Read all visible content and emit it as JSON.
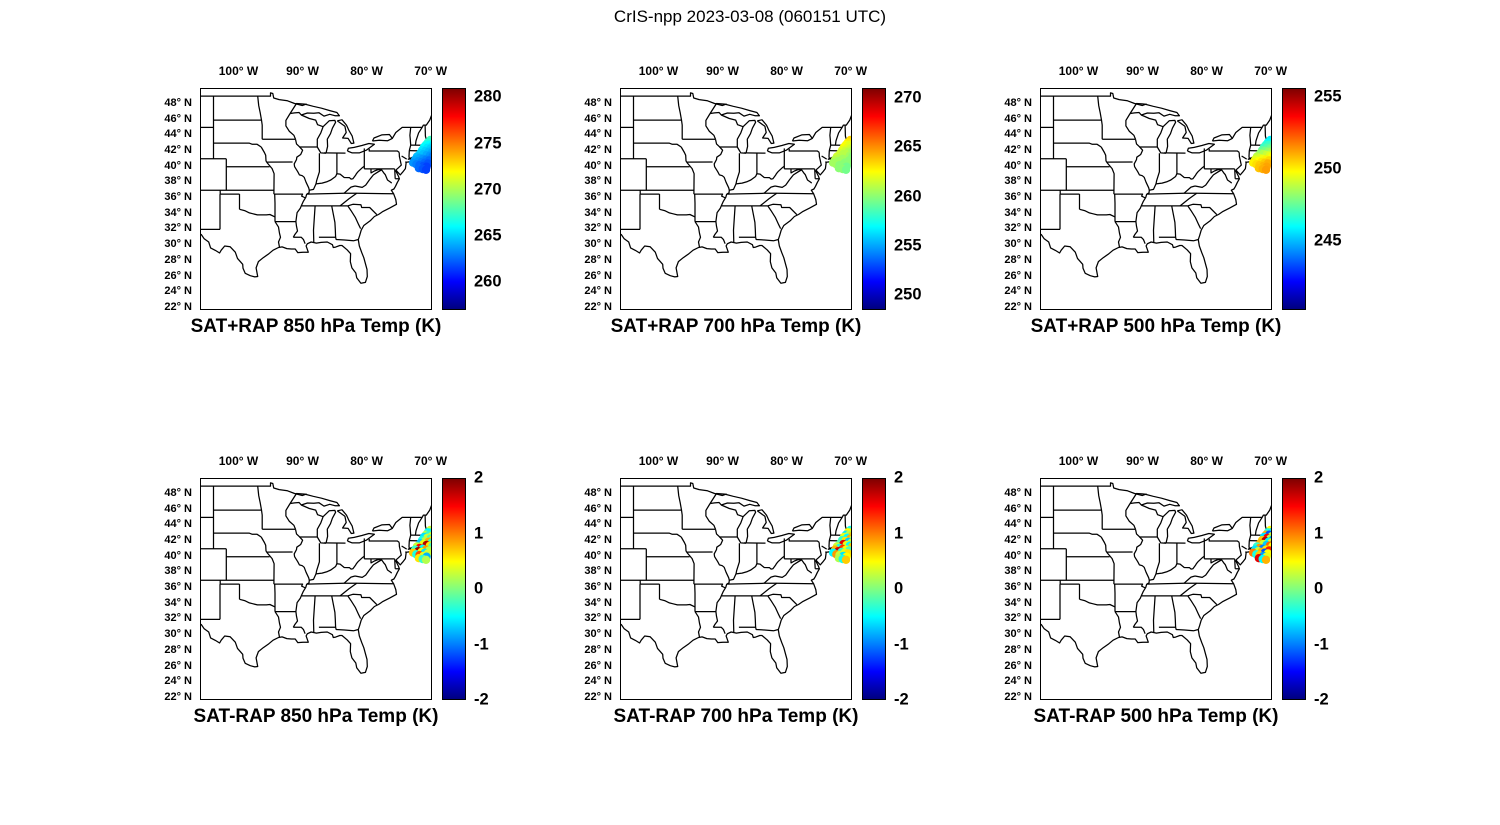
{
  "figure_title": "CrIS-npp 2023-03-08 (060151 UTC)",
  "axes": {
    "lon_ticks": [
      {
        "lon": -100,
        "label": "100° W"
      },
      {
        "lon": -90,
        "label": "90° W"
      },
      {
        "lon": -80,
        "label": "80° W"
      },
      {
        "lon": -70,
        "label": "70° W"
      }
    ],
    "lat_ticks": [
      {
        "lat": 48,
        "label": "48° N"
      },
      {
        "lat": 46,
        "label": "46° N"
      },
      {
        "lat": 44,
        "label": "44° N"
      },
      {
        "lat": 42,
        "label": "42° N"
      },
      {
        "lat": 40,
        "label": "40° N"
      },
      {
        "lat": 38,
        "label": "38° N"
      },
      {
        "lat": 36,
        "label": "36° N"
      },
      {
        "lat": 34,
        "label": "34° N"
      },
      {
        "lat": 32,
        "label": "32° N"
      },
      {
        "lat": 30,
        "label": "30° N"
      },
      {
        "lat": 28,
        "label": "28° N"
      },
      {
        "lat": 26,
        "label": "26° N"
      },
      {
        "lat": 24,
        "label": "24° N"
      },
      {
        "lat": 22,
        "label": "22° N"
      }
    ]
  },
  "chart_data": {
    "type": "scatter",
    "subtype": "map-scatter-with-colorbar",
    "colormap": "jet",
    "lon_range": [
      -106,
      -69.8
    ],
    "lat_range": [
      21.6,
      49.9
    ],
    "points_lonlat": [
      [
        -70.2,
        43.4
      ],
      [
        -69.8,
        43.2
      ],
      [
        -69.4,
        43.0
      ],
      [
        -70.6,
        43.1
      ],
      [
        -70.9,
        42.8
      ],
      [
        -70.4,
        42.8
      ],
      [
        -70.0,
        42.6
      ],
      [
        -69.6,
        42.6
      ],
      [
        -71.2,
        42.5
      ],
      [
        -70.7,
        42.4
      ],
      [
        -70.2,
        42.3
      ],
      [
        -69.8,
        42.2
      ],
      [
        -71.5,
        42.1
      ],
      [
        -71.0,
        42.0
      ],
      [
        -70.5,
        41.9
      ],
      [
        -70.0,
        41.8
      ],
      [
        -69.5,
        41.9
      ],
      [
        -71.8,
        41.7
      ],
      [
        -71.3,
        41.6
      ],
      [
        -70.8,
        41.5
      ],
      [
        -70.3,
        41.4
      ],
      [
        -69.9,
        41.3
      ],
      [
        -72.3,
        41.3
      ],
      [
        -71.9,
        41.1
      ],
      [
        -71.4,
        41.0
      ],
      [
        -70.9,
        40.9
      ],
      [
        -70.4,
        40.8
      ],
      [
        -72.6,
        40.9
      ],
      [
        -72.1,
        40.7
      ],
      [
        -71.6,
        40.6
      ],
      [
        -71.1,
        40.5
      ],
      [
        -70.6,
        40.4
      ],
      [
        -72.9,
        40.5
      ],
      [
        -72.4,
        40.3
      ],
      [
        -71.9,
        40.2
      ],
      [
        -71.3,
        40.1
      ],
      [
        -70.8,
        40.0
      ],
      [
        -72.0,
        39.8
      ],
      [
        -71.4,
        39.7
      ],
      [
        -70.9,
        39.6
      ]
    ],
    "panels": [
      {
        "id": "sat-plus-rap-850",
        "title": "SAT+RAP 850 hPa Temp (K)",
        "vmin": 257,
        "vmax": 281,
        "cb_ticks": [
          {
            "value": 260,
            "label": "260"
          },
          {
            "value": 265,
            "label": "265"
          },
          {
            "value": 270,
            "label": "270"
          },
          {
            "value": 275,
            "label": "275"
          },
          {
            "value": 280,
            "label": "280"
          }
        ],
        "values": [
          267.5,
          267,
          266.5,
          267,
          266.5,
          266,
          265.5,
          265,
          266,
          265.5,
          265,
          264.5,
          265.5,
          265,
          264.5,
          264,
          263.5,
          265,
          264.5,
          264,
          263.5,
          263,
          264.5,
          264,
          263.5,
          263,
          262.5,
          264,
          263.5,
          263,
          262.5,
          262,
          263.5,
          263,
          262.5,
          262,
          261.5,
          262.5,
          262,
          261.5
        ]
      },
      {
        "id": "sat-plus-rap-700",
        "title": "SAT+RAP 700 hPa Temp (K)",
        "vmin": 248.5,
        "vmax": 271,
        "cb_ticks": [
          {
            "value": 250,
            "label": "250"
          },
          {
            "value": 255,
            "label": "255"
          },
          {
            "value": 260,
            "label": "260"
          },
          {
            "value": 265,
            "label": "265"
          },
          {
            "value": 270,
            "label": "270"
          }
        ],
        "values": [
          263.5,
          263,
          262.5,
          263,
          262.5,
          262,
          262,
          261.5,
          262.5,
          262,
          261.5,
          261,
          262,
          261.5,
          261,
          260.5,
          260.5,
          261.5,
          261,
          261,
          260.5,
          260,
          261.5,
          261,
          260.5,
          260.5,
          260,
          261,
          260.5,
          260.5,
          260,
          260,
          260.5,
          260.5,
          260,
          260,
          259.5,
          260,
          260,
          259.5
        ]
      },
      {
        "id": "sat-plus-rap-500",
        "title": "SAT+RAP 500 hPa Temp (K)",
        "vmin": 240.2,
        "vmax": 255.6,
        "cb_ticks": [
          {
            "value": 245,
            "label": "245"
          },
          {
            "value": 250,
            "label": "250"
          },
          {
            "value": 255,
            "label": "255"
          }
        ],
        "values": [
          245.8,
          246.1,
          246.4,
          246,
          246.5,
          246.8,
          247.1,
          247.4,
          246.8,
          247.2,
          247.6,
          248,
          247.4,
          247.8,
          248.2,
          248.6,
          249,
          248.2,
          248.6,
          249,
          249.4,
          249.8,
          248.8,
          249.2,
          249.6,
          250,
          250.4,
          249.4,
          249.8,
          250.2,
          250.6,
          251,
          250,
          250.3,
          250.6,
          250.9,
          251.2,
          250.7,
          251,
          251.3
        ]
      },
      {
        "id": "sat-minus-rap-850",
        "title": "SAT-RAP 850 hPa Temp (K)",
        "vmin": -2,
        "vmax": 2,
        "cb_ticks": [
          {
            "value": -2,
            "label": "-2"
          },
          {
            "value": -1,
            "label": "-1"
          },
          {
            "value": 0,
            "label": "0"
          },
          {
            "value": 1,
            "label": "1"
          },
          {
            "value": 2,
            "label": "2"
          }
        ],
        "values": [
          0.3,
          -0.2,
          0.5,
          -0.5,
          0.2,
          -0.3,
          0.4,
          0.1,
          -0.6,
          0.3,
          -0.2,
          0.6,
          -0.4,
          0.2,
          0.8,
          -0.3,
          0.5,
          -0.7,
          0.4,
          1.8,
          0.6,
          -0.2,
          0.3,
          1.5,
          -0.5,
          0.9,
          0.2,
          -0.3,
          1.9,
          0.5,
          -0.6,
          0.3,
          0.7,
          -0.4,
          1.2,
          0.4,
          -0.8,
          0.6,
          -0.3,
          0.2
        ]
      },
      {
        "id": "sat-minus-rap-700",
        "title": "SAT-RAP 700 hPa Temp (K)",
        "vmin": -2,
        "vmax": 2,
        "cb_ticks": [
          {
            "value": -2,
            "label": "-2"
          },
          {
            "value": -1,
            "label": "-1"
          },
          {
            "value": 0,
            "label": "0"
          },
          {
            "value": 1,
            "label": "1"
          },
          {
            "value": 2,
            "label": "2"
          }
        ],
        "values": [
          -0.4,
          0.3,
          -0.2,
          0.5,
          -0.6,
          0.2,
          0.7,
          -0.3,
          0.4,
          -0.5,
          0.8,
          0.2,
          -0.3,
          0.6,
          -0.7,
          0.3,
          0.5,
          -0.2,
          1.6,
          0.4,
          -0.5,
          0.7,
          0.3,
          -0.4,
          1.3,
          0.5,
          -0.2,
          0.8,
          1.7,
          -0.3,
          0.4,
          0.6,
          -0.5,
          0.9,
          0.3,
          -0.6,
          0.5,
          0.2,
          -0.4,
          0.7
        ]
      },
      {
        "id": "sat-minus-rap-500",
        "title": "SAT-RAP 500 hPa Temp (K)",
        "vmin": -2,
        "vmax": 2,
        "cb_ticks": [
          {
            "value": -2,
            "label": "-2"
          },
          {
            "value": -1,
            "label": "-1"
          },
          {
            "value": 0,
            "label": "0"
          },
          {
            "value": 1,
            "label": "1"
          },
          {
            "value": 2,
            "label": "2"
          }
        ],
        "values": [
          0.5,
          -0.8,
          1.2,
          -0.4,
          0.8,
          -1.2,
          0.3,
          0.9,
          -0.6,
          1.5,
          0.2,
          -0.9,
          0.7,
          1.8,
          -0.5,
          0.4,
          -1.4,
          0.8,
          0.3,
          -0.7,
          1.1,
          0.5,
          -0.3,
          0.9,
          -1,
          0.6,
          1.4,
          -0.6,
          0.3,
          0.8,
          -1.2,
          0.5,
          1,
          -0.4,
          0.7,
          -0.9,
          0.4,
          1.6,
          -0.5,
          0.8
        ]
      }
    ]
  }
}
